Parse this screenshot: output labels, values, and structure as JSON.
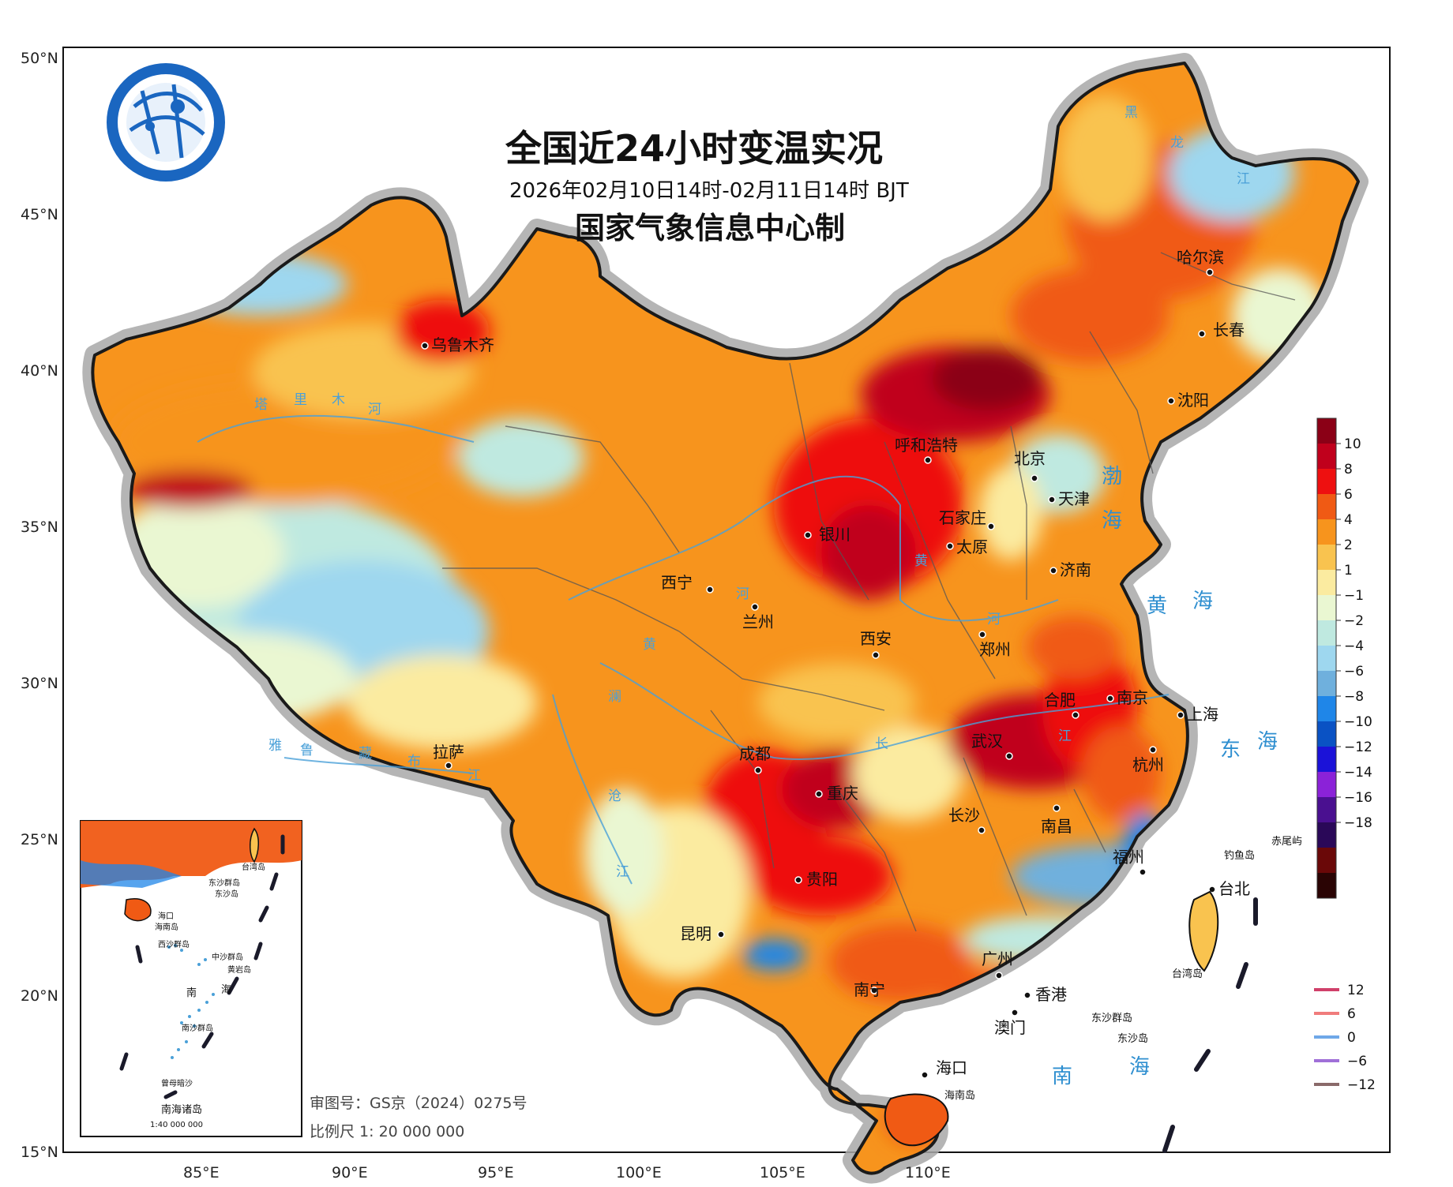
{
  "title": {
    "main": "全国近24小时变温实况",
    "period": "2026年02月10日14时-02月11日14时 BJT",
    "producer": "国家气象信息中心制"
  },
  "axes": {
    "lat_labels": [
      "50°N",
      "45°N",
      "40°N",
      "35°N",
      "30°N",
      "25°N",
      "20°N",
      "15°N"
    ],
    "lon_labels": [
      "85°E",
      "90°E",
      "95°E",
      "100°E",
      "105°E",
      "110°E"
    ]
  },
  "colorbar": {
    "labels": [
      "10",
      "8",
      "6",
      "4",
      "2",
      "1",
      "−1",
      "−2",
      "−4",
      "−6",
      "−8",
      "−10",
      "−12",
      "−14",
      "−16",
      "−18"
    ],
    "colors": [
      "#8b0016",
      "#c0001c",
      "#ee1010",
      "#f05a14",
      "#f7941d",
      "#f9c34f",
      "#fbeba0",
      "#eaf7d2",
      "#bfe9e0",
      "#9ed7ef",
      "#6fb0dd",
      "#1f86e8",
      "#0a52c4",
      "#1b12d8",
      "#8b22d8",
      "#4a1090",
      "#2a0858",
      "#6a0808",
      "#2a0404"
    ]
  },
  "isoline_legend": {
    "items": [
      {
        "label": "12",
        "color": "#d0406a"
      },
      {
        "label": "6",
        "color": "#f07c7c"
      },
      {
        "label": "0",
        "color": "#6fa8e8"
      },
      {
        "label": "−6",
        "color": "#a070d8"
      },
      {
        "label": "−12",
        "color": "#8a6a6a"
      }
    ]
  },
  "cities": [
    {
      "name": "乌鲁木齐"
    },
    {
      "name": "呼和浩特"
    },
    {
      "name": "北京"
    },
    {
      "name": "天津"
    },
    {
      "name": "石家庄"
    },
    {
      "name": "银川"
    },
    {
      "name": "太原"
    },
    {
      "name": "西宁"
    },
    {
      "name": "兰州"
    },
    {
      "name": "济南"
    },
    {
      "name": "西安"
    },
    {
      "name": "郑州"
    },
    {
      "name": "哈尔滨"
    },
    {
      "name": "长春"
    },
    {
      "name": "沈阳"
    },
    {
      "name": "合肥"
    },
    {
      "name": "南京"
    },
    {
      "name": "上海"
    },
    {
      "name": "拉萨"
    },
    {
      "name": "成都"
    },
    {
      "name": "武汉"
    },
    {
      "name": "杭州"
    },
    {
      "name": "重庆"
    },
    {
      "name": "长沙"
    },
    {
      "name": "南昌"
    },
    {
      "name": "贵阳"
    },
    {
      "name": "福州"
    },
    {
      "name": "台北"
    },
    {
      "name": "昆明"
    },
    {
      "name": "广州"
    },
    {
      "name": "南宁"
    },
    {
      "name": "香港"
    },
    {
      "name": "澳门"
    },
    {
      "name": "海口"
    }
  ],
  "seas": [
    "渤",
    "海",
    "黄",
    "海",
    "东",
    "海",
    "南",
    "海"
  ],
  "rivers": [
    "塔",
    "里",
    "木",
    "河",
    "黄",
    "河",
    "黄",
    "河",
    "长",
    "江",
    "澜",
    "沧",
    "江",
    "雅",
    "鲁",
    "藏",
    "布",
    "江",
    "黑",
    "龙",
    "江"
  ],
  "islands": {
    "diaoyu": "钓鱼岛",
    "chiwei": "赤尾屿",
    "taiwan": "台湾岛",
    "dongsha_group": "东沙群岛",
    "dongsha": "东沙岛",
    "hainan": "海南岛"
  },
  "inset": {
    "title": "南海诸岛",
    "scale": "1:40 000 000",
    "labels": [
      "台湾岛",
      "东沙群岛",
      "东沙岛",
      "海口",
      "海南岛",
      "西沙群岛",
      "中沙群岛",
      "黄岩岛",
      "南",
      "海",
      "南沙群岛",
      "曾母暗沙"
    ]
  },
  "map_meta": {
    "approval": "审图号：GS京（2024）0275号",
    "scale": "比例尺  1: 20 000 000"
  }
}
